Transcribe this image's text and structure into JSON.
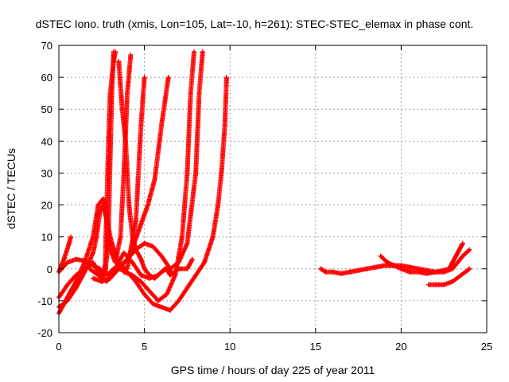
{
  "chart_data": {
    "type": "scatter",
    "title": "dSTEC Iono. truth (xmis, Lon=105, Lat=-10, h=261): STEC-STEC_elemax in phase cont.",
    "xlabel": "GPS time / hours of day 225 of year 2011",
    "ylabel": "dSTEC  / TECUs",
    "xlim": [
      0,
      25
    ],
    "ylim": [
      -20,
      70
    ],
    "xticks": [
      0,
      5,
      10,
      15,
      20,
      25
    ],
    "yticks": [
      -20,
      -10,
      0,
      10,
      20,
      30,
      40,
      50,
      60,
      70
    ],
    "grid": true,
    "marker": "plus",
    "color": "#ff0000",
    "series": [
      {
        "x": [
          0.0,
          0.3,
          0.6,
          0.7
        ],
        "y": [
          -1,
          3,
          8,
          10
        ]
      },
      {
        "x": [
          0.0,
          0.5,
          1.0,
          1.5,
          2.0,
          2.4,
          2.7,
          2.9,
          3.0,
          3.1,
          3.2
        ],
        "y": [
          -1,
          2,
          3,
          2.5,
          1,
          0,
          -2,
          10,
          35,
          55,
          68
        ]
      },
      {
        "x": [
          0.0,
          0.5,
          1.0,
          1.5,
          2.0,
          2.2,
          2.4,
          2.6,
          2.8,
          3.0,
          3.3,
          3.6,
          3.8,
          4.0,
          4.2
        ],
        "y": [
          -12,
          -10,
          -6,
          -1,
          5,
          10,
          18,
          20,
          15,
          6,
          2,
          10,
          30,
          55,
          67
        ]
      },
      {
        "x": [
          0.0,
          0.5,
          1.0,
          1.5,
          2.0,
          2.3,
          2.6,
          3.0,
          3.5,
          4.0,
          4.5,
          4.8,
          5.0
        ],
        "y": [
          -14,
          -9,
          -4,
          2,
          10,
          20,
          22,
          10,
          1,
          0,
          15,
          45,
          60
        ]
      },
      {
        "x": [
          0.0,
          0.5,
          1.0,
          1.5,
          1.8,
          2.0,
          2.2,
          2.5,
          2.7,
          2.8,
          2.9,
          3.0,
          3.2,
          3.3
        ],
        "y": [
          -9,
          -5,
          -2,
          0,
          1,
          2,
          0,
          -3,
          1,
          20,
          40,
          55,
          65,
          68
        ]
      },
      {
        "x": [
          1.8,
          2.3,
          2.8,
          3.3,
          3.8,
          4.3,
          4.8,
          5.3,
          5.8,
          6.2,
          6.6
        ],
        "y": [
          0,
          -2,
          -4,
          0,
          5,
          2,
          -2,
          -3,
          -2,
          0,
          -1
        ]
      },
      {
        "x": [
          3.5,
          3.7,
          3.9,
          4.1,
          4.3,
          4.5,
          4.8,
          5.0,
          5.3,
          5.6,
          5.8,
          6.0,
          6.3,
          6.5,
          7.0,
          7.5,
          7.8
        ],
        "y": [
          65,
          50,
          40,
          20,
          10,
          6,
          3,
          0,
          -2,
          -3,
          -2,
          -1,
          0,
          -2,
          0,
          0,
          3
        ]
      },
      {
        "x": [
          2.8,
          3.2,
          3.6,
          4.0,
          4.4,
          4.8,
          5.2,
          5.6,
          6.0,
          6.4
        ],
        "y": [
          -2,
          0,
          1,
          3,
          8,
          14,
          20,
          28,
          45,
          60
        ]
      },
      {
        "x": [
          3.8,
          4.3,
          4.8,
          5.3,
          5.8,
          6.3,
          6.8,
          7.2,
          7.5,
          7.7,
          7.9
        ],
        "y": [
          -1,
          -2,
          -4,
          -7,
          -10,
          -8,
          -2,
          10,
          30,
          55,
          68
        ]
      },
      {
        "x": [
          2.0,
          2.5,
          3.0,
          3.5,
          4.0,
          4.5,
          5.0,
          5.5,
          6.0,
          6.5,
          7.0,
          7.5,
          8.0,
          8.2,
          8.4
        ],
        "y": [
          -3,
          -4,
          -3,
          0,
          3,
          6,
          8,
          7,
          4,
          0,
          2,
          8,
          30,
          55,
          68
        ]
      },
      {
        "x": [
          3.5,
          4.0,
          4.5,
          5.0,
          5.5,
          6.0,
          6.5,
          7.0,
          7.5,
          8.0,
          8.5,
          9.0,
          9.3,
          9.5,
          9.7,
          9.8
        ],
        "y": [
          0,
          -1,
          -4,
          -8,
          -11,
          -12,
          -13,
          -10,
          -6,
          -2,
          2,
          10,
          20,
          30,
          45,
          60
        ]
      },
      {
        "x": [
          15.3,
          15.6,
          16.0,
          16.5,
          17.0,
          17.5,
          18.0,
          18.5,
          19.0,
          19.5,
          20.0,
          20.5,
          21.0,
          21.5,
          22.0,
          22.5,
          23.0,
          23.3,
          23.6,
          24.0
        ],
        "y": [
          0,
          -1,
          -1,
          -1.5,
          -1,
          -0.5,
          0,
          0.5,
          1,
          1,
          1,
          0.5,
          0,
          -0.5,
          -1,
          -1,
          0,
          2,
          4,
          6
        ]
      },
      {
        "x": [
          18.8,
          19.2,
          19.6,
          20.0,
          20.5,
          21.0,
          21.5,
          22.0,
          22.5,
          22.8,
          23.0,
          23.2,
          23.4,
          23.6
        ],
        "y": [
          4,
          2,
          1,
          0,
          -1,
          -1,
          -1.5,
          -1,
          -0.5,
          0,
          2,
          4,
          6,
          8
        ]
      },
      {
        "x": [
          21.6,
          22.0,
          22.5,
          23.0,
          23.5,
          24.0
        ],
        "y": [
          -5,
          -5,
          -5,
          -4,
          -2,
          0
        ]
      }
    ]
  }
}
